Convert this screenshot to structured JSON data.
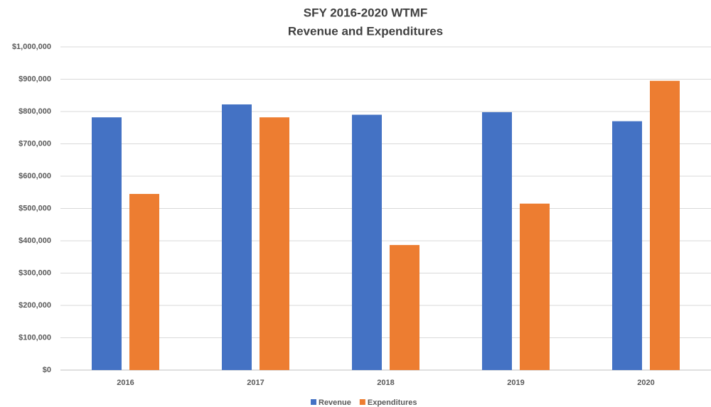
{
  "chart_data": {
    "type": "bar",
    "title": "SFY 2016-2020 WTMF",
    "subtitle": "Revenue and Expenditures",
    "categories": [
      "2016",
      "2017",
      "2018",
      "2019",
      "2020"
    ],
    "series": [
      {
        "name": "Revenue",
        "color": "#4472c4",
        "values": [
          782000,
          822000,
          790000,
          798000,
          770000
        ]
      },
      {
        "name": "Expenditures",
        "color": "#ed7d31",
        "values": [
          545000,
          782000,
          387000,
          515000,
          895000
        ]
      }
    ],
    "ylim": [
      0,
      1000000
    ],
    "yticks": [
      {
        "value": 0,
        "label": "$0"
      },
      {
        "value": 100000,
        "label": "$100,000"
      },
      {
        "value": 200000,
        "label": "$200,000"
      },
      {
        "value": 300000,
        "label": "$300,000"
      },
      {
        "value": 400000,
        "label": "$400,000"
      },
      {
        "value": 500000,
        "label": "$500,000"
      },
      {
        "value": 600000,
        "label": "$600,000"
      },
      {
        "value": 700000,
        "label": "$700,000"
      },
      {
        "value": 800000,
        "label": "$800,000"
      },
      {
        "value": 900000,
        "label": "$900,000"
      },
      {
        "value": 1000000,
        "label": "$1,000,000"
      }
    ],
    "grid": true,
    "legend": "bottom"
  }
}
